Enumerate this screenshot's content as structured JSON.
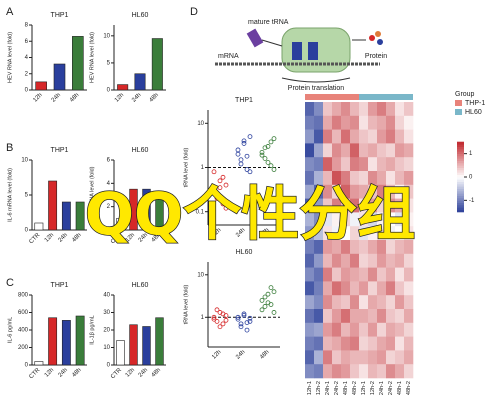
{
  "chart_data": [
    {
      "type": "bar",
      "title": "THP1",
      "ylabel": "HEV RNA level (fold)",
      "categories": [
        "12h",
        "24h",
        "48h"
      ],
      "values": [
        1.0,
        3.2,
        6.6
      ],
      "colors": [
        "#d62728",
        "#2a3f9d",
        "#3a7d3a"
      ],
      "ylim": [
        0,
        8
      ],
      "yticks": [
        0,
        2,
        4,
        6,
        8
      ]
    },
    {
      "type": "bar",
      "title": "HL60",
      "ylabel": "HEV RNA level (fold)",
      "categories": [
        "12h",
        "24h",
        "48h"
      ],
      "values": [
        1.0,
        3.0,
        9.5
      ],
      "colors": [
        "#d62728",
        "#2a3f9d",
        "#3a7d3a"
      ],
      "ylim": [
        0,
        12
      ],
      "yticks": [
        0,
        5,
        10
      ]
    },
    {
      "type": "bar",
      "title": "THP1",
      "ylabel": "IL-6 mRNA level (fold)",
      "categories": [
        "CTR",
        "12h",
        "24h",
        "48h"
      ],
      "values": [
        1.0,
        7.0,
        4.0,
        4.0
      ],
      "colors": [
        "#ffffff",
        "#d62728",
        "#2a3f9d",
        "#3a7d3a"
      ],
      "ylim": [
        0,
        10
      ],
      "yticks": [
        0,
        5,
        10
      ]
    },
    {
      "type": "bar",
      "title": "HL60",
      "ylabel": "IL-1β mRNA level (fold)",
      "categories": [
        "CTR",
        "12h",
        "24h",
        "48h"
      ],
      "values": [
        1.0,
        3.5,
        3.5,
        2.8
      ],
      "colors": [
        "#ffffff",
        "#d62728",
        "#2a3f9d",
        "#3a7d3a"
      ],
      "ylim": [
        0,
        6
      ],
      "yticks": [
        0,
        2,
        4,
        6
      ]
    },
    {
      "type": "bar",
      "title": "THP1",
      "ylabel": "IL-6 pg/mL",
      "categories": [
        "CTR",
        "12h",
        "24h",
        "48h"
      ],
      "values": [
        40,
        540,
        510,
        560
      ],
      "colors": [
        "#ffffff",
        "#d62728",
        "#2a3f9d",
        "#3a7d3a"
      ],
      "ylim": [
        0,
        800
      ],
      "yticks": [
        0,
        200,
        400,
        600,
        800
      ]
    },
    {
      "type": "bar",
      "title": "HL60",
      "ylabel": "IL-1β pg/mL",
      "categories": [
        "CTR",
        "12h",
        "24h",
        "48h"
      ],
      "values": [
        14,
        23,
        22,
        27
      ],
      "colors": [
        "#ffffff",
        "#d62728",
        "#2a3f9d",
        "#3a7d3a"
      ],
      "ylim": [
        0,
        40
      ],
      "yticks": [
        0,
        10,
        20,
        30,
        40
      ]
    },
    {
      "type": "strip",
      "title": "THP1",
      "ylabel": "tRNA level (fold)",
      "categories": [
        "12h",
        "24h",
        "48h"
      ],
      "log": true,
      "ylim": [
        0.05,
        20
      ],
      "yticks": [
        0.1,
        1,
        10
      ],
      "refline": 1,
      "colors": [
        "#d62728",
        "#2a3f9d",
        "#3a7d3a"
      ],
      "values": [
        [
          0.3,
          0.2,
          0.5,
          0.15,
          0.4,
          0.8,
          0.25,
          0.35,
          0.6,
          0.12
        ],
        [
          2.0,
          1.5,
          3.5,
          0.9,
          5.0,
          2.5,
          1.2,
          4.0,
          1.8,
          0.8
        ],
        [
          2.2,
          1.6,
          3.0,
          1.1,
          4.5,
          1.9,
          2.8,
          1.3,
          3.8,
          0.9
        ]
      ]
    },
    {
      "type": "strip",
      "title": "HL60",
      "ylabel": "tRNA level (fold)",
      "categories": [
        "12h",
        "24h",
        "48h"
      ],
      "log": true,
      "ylim": [
        0.2,
        20
      ],
      "yticks": [
        1,
        10
      ],
      "refline": 1,
      "colors": [
        "#d62728",
        "#2a3f9d",
        "#3a7d3a"
      ],
      "values": [
        [
          1.0,
          0.8,
          1.3,
          0.7,
          1.1,
          0.9,
          1.5,
          0.6,
          1.2,
          0.85
        ],
        [
          0.9,
          0.7,
          1.1,
          0.5,
          0.8,
          1.0,
          0.6,
          1.2,
          0.75,
          0.95
        ],
        [
          2.5,
          1.8,
          3.5,
          2.0,
          4.0,
          1.5,
          3.0,
          2.2,
          5.0,
          1.3
        ]
      ]
    },
    {
      "type": "heatmap",
      "legend_title": "Group",
      "groups": [
        {
          "name": "THP-1",
          "color": "#e8837a"
        },
        {
          "name": "HL60",
          "color": "#7ab7c9"
        }
      ],
      "column_groups": [
        0,
        0,
        0,
        0,
        0,
        0,
        1,
        1,
        1,
        1,
        1,
        1
      ],
      "columns": [
        "12h-1",
        "12h-2",
        "24h-1",
        "24h-2",
        "48h-1",
        "48h-2",
        "12h-1",
        "12h-2",
        "24h-1",
        "24h-2",
        "48h-1",
        "48h-2"
      ],
      "colors": [
        "#2b3f99",
        "#ffffff",
        "#c0272d"
      ],
      "clim": [
        -1.5,
        1.5
      ],
      "cticks": [
        -1,
        0,
        1
      ],
      "values": [
        [
          -1.2,
          -0.9,
          0.4,
          0.6,
          0.8,
          0.5,
          0.3,
          0.7,
          0.9,
          0.6,
          0.2,
          0.4
        ],
        [
          -1.0,
          -1.1,
          0.6,
          0.9,
          0.7,
          0.8,
          0.2,
          0.5,
          0.6,
          0.8,
          0.3,
          0.1
        ],
        [
          -0.8,
          -1.3,
          0.9,
          0.5,
          1.0,
          0.6,
          0.4,
          0.3,
          0.7,
          0.9,
          0.5,
          0.2
        ],
        [
          -1.4,
          -0.7,
          0.3,
          0.8,
          0.6,
          1.1,
          0.5,
          0.6,
          0.4,
          0.3,
          0.7,
          0.6
        ],
        [
          -0.9,
          -1.0,
          1.1,
          0.7,
          0.4,
          0.9,
          0.8,
          0.2,
          0.5,
          0.6,
          0.4,
          0.3
        ],
        [
          -1.1,
          -0.6,
          0.5,
          1.2,
          0.9,
          0.4,
          0.3,
          0.8,
          0.6,
          0.2,
          0.5,
          0.7
        ],
        [
          -0.7,
          -1.2,
          0.8,
          0.3,
          1.1,
          0.7,
          0.6,
          0.4,
          0.9,
          0.5,
          0.1,
          0.4
        ],
        [
          -1.3,
          -0.8,
          0.4,
          0.9,
          0.5,
          1.0,
          0.2,
          0.7,
          0.3,
          0.8,
          0.6,
          0.2
        ],
        [
          -0.6,
          -0.9,
          -0.2,
          0.1,
          0.3,
          -0.1,
          0.2,
          -0.3,
          0.1,
          0.0,
          -0.2,
          0.1
        ],
        [
          -0.8,
          -0.5,
          0.2,
          -0.1,
          0.0,
          0.3,
          -0.2,
          0.1,
          0.2,
          -0.1,
          0.0,
          0.2
        ],
        [
          -1.0,
          -1.2,
          0.7,
          0.6,
          0.9,
          0.5,
          0.4,
          0.6,
          0.8,
          0.3,
          0.5,
          0.6
        ],
        [
          -1.2,
          -0.8,
          0.5,
          0.8,
          0.6,
          0.9,
          0.3,
          0.4,
          0.7,
          0.5,
          0.6,
          0.3
        ],
        [
          -0.9,
          -1.1,
          0.9,
          0.4,
          0.7,
          0.6,
          0.5,
          0.8,
          0.4,
          0.6,
          0.2,
          0.5
        ],
        [
          -1.3,
          -1.0,
          0.6,
          1.0,
          0.8,
          0.5,
          0.7,
          0.3,
          0.6,
          0.9,
          0.4,
          0.2
        ],
        [
          -0.7,
          -0.9,
          0.8,
          0.5,
          0.4,
          0.8,
          0.2,
          0.6,
          0.5,
          0.3,
          0.7,
          0.4
        ],
        [
          -1.1,
          -1.3,
          0.4,
          0.7,
          1.0,
          0.6,
          0.6,
          0.5,
          0.8,
          0.4,
          0.3,
          0.6
        ],
        [
          -0.8,
          -0.7,
          0.7,
          0.9,
          0.5,
          0.7,
          0.4,
          0.7,
          0.3,
          0.6,
          0.5,
          0.3
        ],
        [
          -1.0,
          -1.1,
          0.5,
          0.6,
          0.8,
          0.9,
          0.3,
          0.4,
          0.6,
          0.7,
          0.2,
          0.5
        ],
        [
          -1.2,
          -0.6,
          0.9,
          0.4,
          0.6,
          0.5,
          0.5,
          0.6,
          0.7,
          0.3,
          0.4,
          0.6
        ],
        [
          -0.9,
          -1.0,
          0.6,
          0.8,
          0.7,
          0.4,
          0.2,
          0.5,
          0.4,
          0.8,
          0.6,
          0.3
        ]
      ]
    }
  ],
  "panel_labels": [
    "A",
    "B",
    "C",
    "D"
  ],
  "diagram": {
    "labels": [
      "mature tRNA",
      "mRNA",
      "Protein translation",
      "Protein"
    ]
  },
  "overlay_text": "QQ个性分组"
}
